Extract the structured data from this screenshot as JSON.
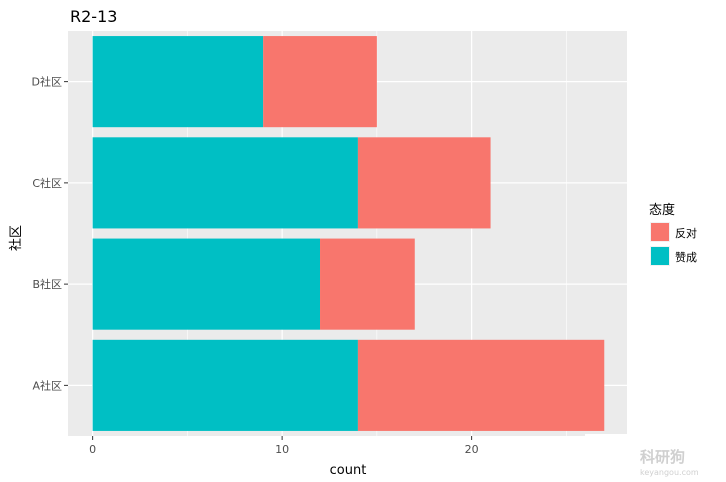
{
  "chart_data": {
    "type": "bar",
    "orientation": "horizontal",
    "stacked": true,
    "title": "R2-13",
    "xlabel": "count",
    "ylabel": "社区",
    "categories": [
      "A社区",
      "B社区",
      "C社区",
      "D社区"
    ],
    "xlim": [
      -1.3,
      28.2
    ],
    "xticks": [
      0,
      10,
      20
    ],
    "grid": true,
    "legend": {
      "title": "态度",
      "placement": "right"
    },
    "series": [
      {
        "name": "反对",
        "values": [
          13,
          5,
          7,
          6
        ],
        "color": "#F8766D"
      },
      {
        "name": "赞成",
        "values": [
          14,
          12,
          14,
          9
        ],
        "color": "#00BFC4"
      }
    ],
    "panel_color": "#EBEBEB"
  },
  "watermark": {
    "text": "科研狗",
    "subtext": "keyangou.com"
  }
}
